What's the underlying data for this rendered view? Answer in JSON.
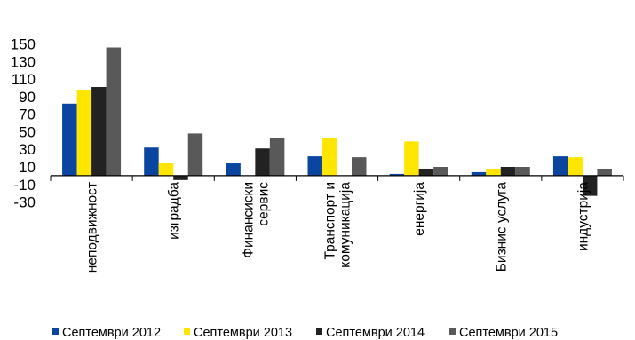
{
  "chart_data": {
    "type": "bar",
    "title": "",
    "xlabel": "",
    "ylabel": "",
    "ylim": [
      -30,
      150
    ],
    "yticks": [
      150,
      130,
      110,
      90,
      70,
      50,
      30,
      10,
      -10,
      -30
    ],
    "grid": false,
    "legend_position": "bottom",
    "categories": [
      [
        "неподвижност"
      ],
      [
        "изградба"
      ],
      [
        "Финансиски",
        "сервис"
      ],
      [
        "Транспорт и",
        "комуникација"
      ],
      [
        "енергија"
      ],
      [
        "Бизнис услуга"
      ],
      [
        "индустрија"
      ]
    ],
    "series": [
      {
        "name": "Септември 2012",
        "color": "#0a46a0",
        "values": [
          82,
          32,
          14,
          22,
          2,
          4,
          22
        ]
      },
      {
        "name": "Септември 2013",
        "color": "#ffe600",
        "values": [
          98,
          14,
          0,
          43,
          39,
          8,
          21
        ]
      },
      {
        "name": "Септември 2014",
        "color": "#222222",
        "values": [
          101,
          -5,
          31,
          0,
          8,
          10,
          -23
        ]
      },
      {
        "name": "Септември 2015",
        "color": "#595959",
        "values": [
          146,
          48,
          43,
          21,
          10,
          10,
          8
        ]
      }
    ]
  }
}
